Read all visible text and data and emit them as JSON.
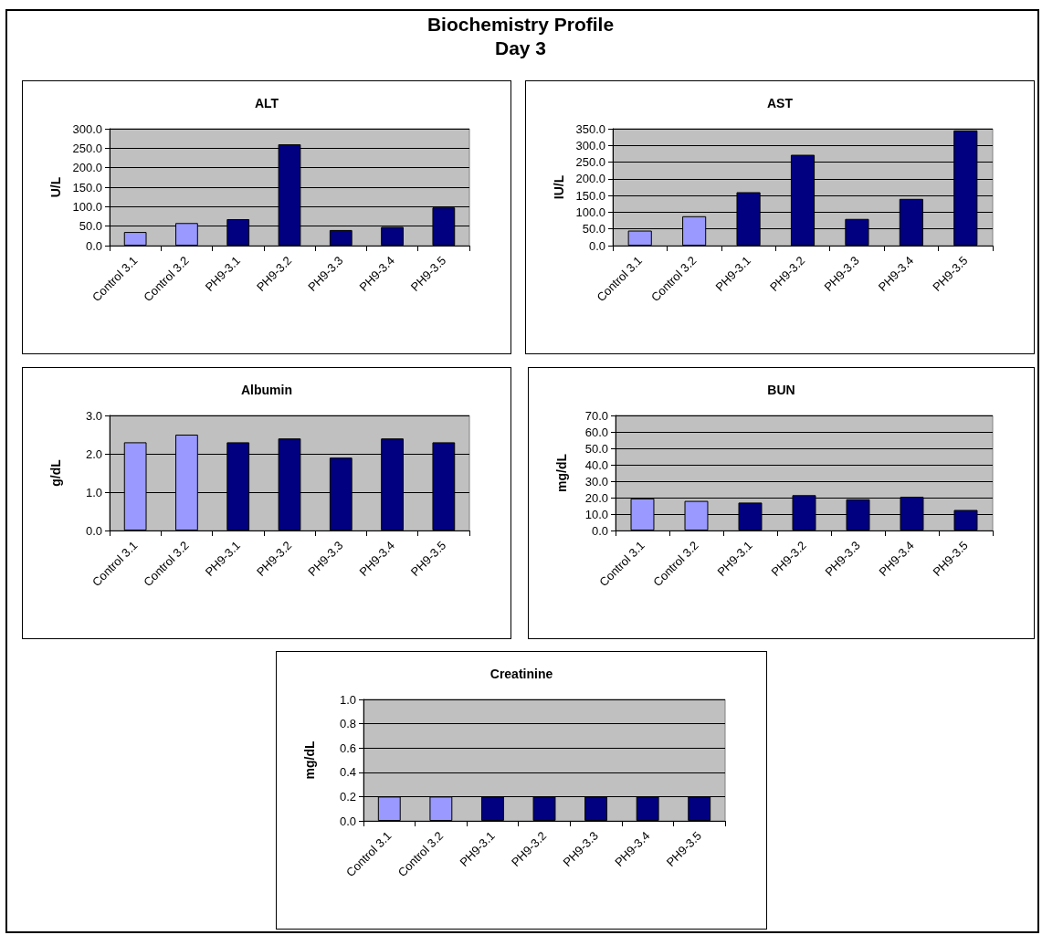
{
  "chart_data": [
    {
      "type": "other",
      "title": "Biochemistry Profile",
      "subtitle": "Day 3"
    },
    {
      "type": "bar",
      "title": "ALT",
      "ylabel": "U/L",
      "categories": [
        "Control 3.1",
        "Control 3.2",
        "PH9-3.1",
        "PH9-3.2",
        "PH9-3.3",
        "PH9-3.4",
        "PH9-3.5"
      ],
      "values": [
        35,
        58,
        68,
        260,
        40,
        48,
        98
      ],
      "colors": [
        "#9999ff",
        "#9999ff",
        "#000080",
        "#000080",
        "#000080",
        "#000080",
        "#000080"
      ],
      "ylim": [
        0,
        300
      ],
      "yticks": [
        {
          "value": 0,
          "label": "0.0"
        },
        {
          "value": 50,
          "label": "50.0"
        },
        {
          "value": 100,
          "label": "100.0"
        },
        {
          "value": 150,
          "label": "150.0"
        },
        {
          "value": 200,
          "label": "200.0"
        },
        {
          "value": 250,
          "label": "250.0"
        },
        {
          "value": 300,
          "label": "300.0"
        }
      ],
      "grid": "y"
    },
    {
      "type": "bar",
      "title": "AST",
      "ylabel": "IU/L",
      "categories": [
        "Control 3.1",
        "Control 3.2",
        "PH9-3.1",
        "PH9-3.2",
        "PH9-3.3",
        "PH9-3.4",
        "PH9-3.5"
      ],
      "values": [
        45,
        88,
        160,
        272,
        80,
        140,
        345
      ],
      "colors": [
        "#9999ff",
        "#9999ff",
        "#000080",
        "#000080",
        "#000080",
        "#000080",
        "#000080"
      ],
      "ylim": [
        0,
        350
      ],
      "yticks": [
        {
          "value": 0,
          "label": "0.0"
        },
        {
          "value": 50,
          "label": "50.0"
        },
        {
          "value": 100,
          "label": "100.0"
        },
        {
          "value": 150,
          "label": "150.0"
        },
        {
          "value": 200,
          "label": "200.0"
        },
        {
          "value": 250,
          "label": "250.0"
        },
        {
          "value": 300,
          "label": "300.0"
        },
        {
          "value": 350,
          "label": "350.0"
        }
      ],
      "grid": "y"
    },
    {
      "type": "bar",
      "title": "Albumin",
      "ylabel": "g/dL",
      "categories": [
        "Control 3.1",
        "Control 3.2",
        "PH9-3.1",
        "PH9-3.2",
        "PH9-3.3",
        "PH9-3.4",
        "PH9-3.5"
      ],
      "values": [
        2.3,
        2.5,
        2.3,
        2.4,
        1.9,
        2.4,
        2.3
      ],
      "colors": [
        "#9999ff",
        "#9999ff",
        "#000080",
        "#000080",
        "#000080",
        "#000080",
        "#000080"
      ],
      "ylim": [
        0,
        3
      ],
      "yticks": [
        {
          "value": 0,
          "label": "0.0"
        },
        {
          "value": 1,
          "label": "1.0"
        },
        {
          "value": 2,
          "label": "2.0"
        },
        {
          "value": 3,
          "label": "3.0"
        }
      ],
      "grid": "y"
    },
    {
      "type": "bar",
      "title": "BUN",
      "ylabel": "mg/dL",
      "categories": [
        "Control 3.1",
        "Control 3.2",
        "PH9-3.1",
        "PH9-3.2",
        "PH9-3.3",
        "PH9-3.4",
        "PH9-3.5"
      ],
      "values": [
        19.5,
        18,
        17,
        21.5,
        19,
        20.5,
        12.5
      ],
      "colors": [
        "#9999ff",
        "#9999ff",
        "#000080",
        "#000080",
        "#000080",
        "#000080",
        "#000080"
      ],
      "ylim": [
        0,
        70
      ],
      "yticks": [
        {
          "value": 0,
          "label": "0.0"
        },
        {
          "value": 10,
          "label": "10.0"
        },
        {
          "value": 20,
          "label": "20.0"
        },
        {
          "value": 30,
          "label": "30.0"
        },
        {
          "value": 40,
          "label": "40.0"
        },
        {
          "value": 50,
          "label": "50.0"
        },
        {
          "value": 60,
          "label": "60.0"
        },
        {
          "value": 70,
          "label": "70.0"
        }
      ],
      "grid": "y"
    },
    {
      "type": "bar",
      "title": "Creatinine",
      "ylabel": "mg/dL",
      "categories": [
        "Control 3.1",
        "Control 3.2",
        "PH9-3.1",
        "PH9-3.2",
        "PH9-3.3",
        "PH9-3.4",
        "PH9-3.5"
      ],
      "values": [
        0.2,
        0.2,
        0.2,
        0.2,
        0.2,
        0.2,
        0.2
      ],
      "colors": [
        "#9999ff",
        "#9999ff",
        "#000080",
        "#000080",
        "#000080",
        "#000080",
        "#000080"
      ],
      "ylim": [
        0,
        1
      ],
      "yticks": [
        {
          "value": 0,
          "label": "0.0"
        },
        {
          "value": 0.2,
          "label": "0.2"
        },
        {
          "value": 0.4,
          "label": "0.4"
        },
        {
          "value": 0.6,
          "label": "0.6"
        },
        {
          "value": 0.8,
          "label": "0.8"
        },
        {
          "value": 1,
          "label": "1.0"
        }
      ],
      "grid": "y"
    }
  ]
}
